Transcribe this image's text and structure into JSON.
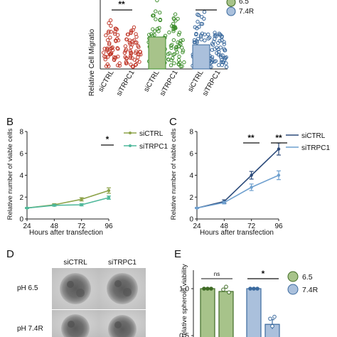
{
  "panel_a": {
    "ylabel": "Relative Cell Migratio",
    "categories": [
      "siCTRL",
      "siTRPC1",
      "siCTRL",
      "siTRPC1",
      "siCTRL",
      "siTRPC1"
    ],
    "sig": [
      "**",
      "***"
    ],
    "legend": [
      "6.5",
      "7.4R"
    ],
    "colors": {
      "red": "#c0392b",
      "green": "#3f8f2e",
      "blue": "#3b6a9e",
      "lgreen": "#a7c38a",
      "lblue": "#aac0dc"
    }
  },
  "panel_b": {
    "letter": "B"
  },
  "panel_c": {
    "letter": "C"
  },
  "panel_d": {
    "letter": "D",
    "columns": [
      "siCTRL",
      "siTRPC1"
    ],
    "rows": [
      "pH 6.5",
      "pH 7.4R"
    ]
  },
  "panel_e": {
    "letter": "E",
    "ylabel": "Relative spheroid viability",
    "yticks": [
      "1.0",
      "0.5"
    ],
    "sig": [
      "ns",
      "*"
    ],
    "legend": [
      "6.5",
      "7.4R"
    ]
  },
  "chart_data": [
    {
      "type": "line",
      "panel": "B",
      "x": [
        24,
        48,
        72,
        96
      ],
      "xlabel": "Hours after transfection",
      "ylabel": "Relative number of viable cells",
      "xticks": [
        "24",
        "48",
        "72",
        "96"
      ],
      "yticks": [
        "0",
        "2",
        "4",
        "6",
        "8"
      ],
      "ylim": [
        0,
        8
      ],
      "series": [
        {
          "name": "siCTRL",
          "values": [
            1.0,
            1.3,
            1.8,
            2.6
          ],
          "err": [
            0.05,
            0.1,
            0.15,
            0.25
          ],
          "color": "#8da34a"
        },
        {
          "name": "siTRPC1",
          "values": [
            1.0,
            1.25,
            1.3,
            1.95
          ],
          "err": [
            0.05,
            0.08,
            0.1,
            0.15
          ],
          "color": "#4fb89b"
        }
      ],
      "annotations": [
        {
          "text": "*",
          "x": 96
        }
      ],
      "legend": "top-right"
    },
    {
      "type": "line",
      "panel": "C",
      "x": [
        24,
        48,
        72,
        96
      ],
      "xlabel": "Hours after transfection",
      "ylabel": "Relative number of viable cells",
      "xticks": [
        "24",
        "48",
        "72",
        "96"
      ],
      "yticks": [
        "0",
        "2",
        "4",
        "6",
        "8"
      ],
      "ylim": [
        0,
        8
      ],
      "series": [
        {
          "name": "siCTRL",
          "values": [
            1.0,
            1.6,
            4.0,
            6.4
          ],
          "err": [
            0.05,
            0.15,
            0.35,
            0.55
          ],
          "color": "#2b4a7a"
        },
        {
          "name": "siTRPC1",
          "values": [
            1.0,
            1.5,
            2.9,
            4.0
          ],
          "err": [
            0.05,
            0.12,
            0.3,
            0.4
          ],
          "color": "#6fa0cf"
        }
      ],
      "annotations": [
        {
          "text": "**",
          "x": 72
        },
        {
          "text": "**",
          "x": 96
        }
      ],
      "legend": "top-right"
    },
    {
      "type": "bar",
      "panel": "E",
      "ylabel": "Relative spheroid viability",
      "yticks": [
        "1.0",
        "0.5"
      ],
      "ylim": [
        0,
        1.2
      ],
      "series": [
        {
          "name": "6.5",
          "values": [
            1.0,
            0.97
          ],
          "color": "#6b8f3a"
        },
        {
          "name": "7.4R",
          "values": [
            1.0,
            0.62
          ],
          "color": "#3b6a9e"
        }
      ],
      "annotations": [
        "ns",
        "*"
      ],
      "legend": "top-right"
    }
  ]
}
